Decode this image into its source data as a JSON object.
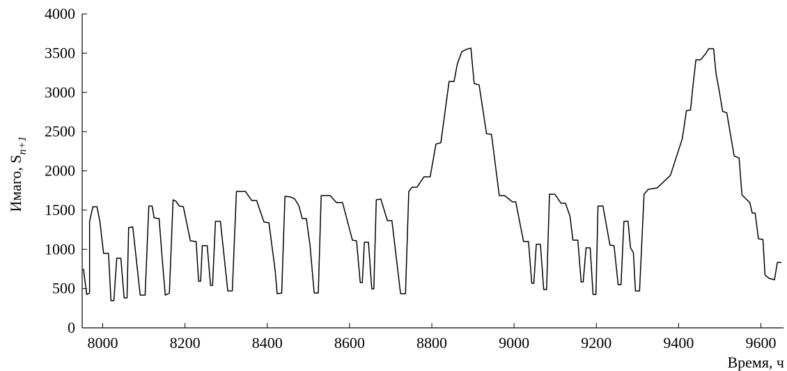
{
  "chart_data": {
    "type": "line",
    "x_label": "Время, ч",
    "y_label": "Имаго, S",
    "y_label_subscript": "n+1",
    "xlim": [
      7950,
      9655
    ],
    "ylim": [
      0,
      4000
    ],
    "xticks": [
      8000,
      8200,
      8400,
      8600,
      8800,
      9000,
      9200,
      9400,
      9600
    ],
    "yticks": [
      0,
      500,
      1000,
      1500,
      2000,
      2500,
      3000,
      3500,
      4000
    ],
    "x": [
      7953,
      7961,
      7968,
      7968,
      7976,
      7986,
      7993,
      8002,
      8014,
      8020,
      8027,
      8034,
      8044,
      8052,
      8059,
      8063,
      8073,
      8091,
      8103,
      8112,
      8120,
      8125,
      8137,
      8145,
      8152,
      8162,
      8171,
      8178,
      8186,
      8196,
      8213,
      8227,
      8233,
      8238,
      8242,
      8254,
      8262,
      8267,
      8274,
      8286,
      8304,
      8315,
      8325,
      8347,
      8362,
      8374,
      8392,
      8404,
      8419,
      8424,
      8435,
      8443,
      8457,
      8467,
      8477,
      8485,
      8495,
      8504,
      8514,
      8524,
      8531,
      8553,
      8568,
      8583,
      8607,
      8617,
      8626,
      8631,
      8636,
      8646,
      8654,
      8659,
      8665,
      8676,
      8692,
      8703,
      8724,
      8736,
      8744,
      8752,
      8764,
      8781,
      8796,
      8810,
      8822,
      8842,
      8854,
      8862,
      8873,
      8884,
      8895,
      8903,
      8915,
      8933,
      8945,
      8964,
      8977,
      8996,
      9004,
      9023,
      9035,
      9043,
      9048,
      9054,
      9064,
      9072,
      9079,
      9086,
      9099,
      9114,
      9125,
      9136,
      9143,
      9155,
      9163,
      9168,
      9175,
      9185,
      9192,
      9199,
      9204,
      9216,
      9233,
      9243,
      9253,
      9260,
      9267,
      9277,
      9283,
      9290,
      9295,
      9305,
      9316,
      9326,
      9348,
      9380,
      9409,
      9419,
      9429,
      9434,
      9442,
      9453,
      9466,
      9473,
      9485,
      9491,
      9498,
      9507,
      9517,
      9535,
      9547,
      9554,
      9573,
      9579,
      9586,
      9594,
      9605,
      9610,
      9620,
      9627,
      9633,
      9640,
      9650
    ],
    "series": [
      {
        "color": "#000000",
        "values": [
          754,
          426,
          443,
          1357,
          1543,
          1543,
          1357,
          949,
          949,
          346,
          346,
          887,
          887,
          381,
          381,
          1277,
          1286,
          417,
          417,
          1552,
          1552,
          1401,
          1392,
          851,
          417,
          443,
          1632,
          1614,
          1552,
          1543,
          1109,
          1100,
          594,
          594,
          1047,
          1047,
          541,
          541,
          1357,
          1357,
          470,
          470,
          1738,
          1738,
          1623,
          1623,
          1348,
          1339,
          736,
          435,
          443,
          1676,
          1667,
          1641,
          1552,
          1392,
          1392,
          1047,
          443,
          443,
          1685,
          1685,
          1596,
          1596,
          1117,
          1109,
          576,
          576,
          1091,
          1091,
          497,
          497,
          1632,
          1641,
          1366,
          1366,
          435,
          435,
          1738,
          1792,
          1792,
          1925,
          1925,
          2341,
          2359,
          3140,
          3140,
          3361,
          3521,
          3548,
          3565,
          3113,
          3095,
          2474,
          2466,
          1685,
          1685,
          1605,
          1605,
          1100,
          1100,
          568,
          568,
          1064,
          1064,
          488,
          488,
          1703,
          1703,
          1588,
          1588,
          1419,
          1117,
          1117,
          585,
          585,
          1020,
          1020,
          426,
          426,
          1552,
          1552,
          1055,
          1047,
          550,
          550,
          1357,
          1357,
          1020,
          958,
          470,
          470,
          1703,
          1765,
          1783,
          1943,
          2412,
          2767,
          2776,
          3042,
          3415,
          3415,
          3494,
          3557,
          3557,
          3237,
          3042,
          2758,
          2741,
          2191,
          2164,
          1694,
          1596,
          1463,
          1463,
          1135,
          1126,
          674,
          630,
          621,
          612,
          834,
          834
        ]
      }
    ]
  }
}
